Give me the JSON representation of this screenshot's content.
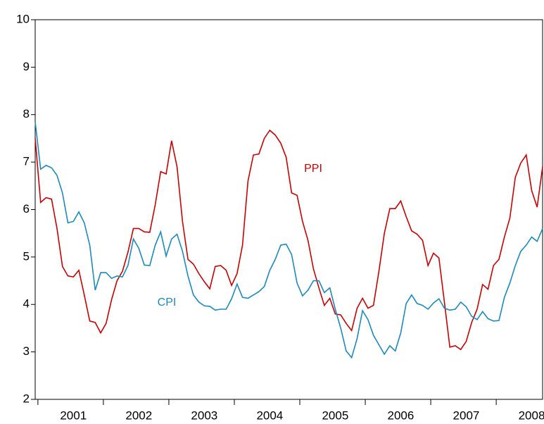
{
  "chart_data": {
    "type": "line",
    "categories": [
      null,
      null,
      null,
      null,
      null,
      null,
      null,
      "2001",
      null,
      null,
      null,
      null,
      null,
      null,
      null,
      null,
      null,
      null,
      null,
      "2002",
      null,
      null,
      null,
      null,
      null,
      null,
      null,
      null,
      null,
      null,
      null,
      "2003",
      null,
      null,
      null,
      null,
      null,
      null,
      null,
      null,
      null,
      null,
      null,
      "2004",
      null,
      null,
      null,
      null,
      null,
      null,
      null,
      null,
      null,
      null,
      null,
      "2005",
      null,
      null,
      null,
      null,
      null,
      null,
      null,
      null,
      null,
      null,
      null,
      "2006",
      null,
      null,
      null,
      null,
      null,
      null,
      null,
      null,
      null,
      null,
      null,
      "2007",
      null,
      null,
      null,
      null,
      null,
      null,
      null,
      null,
      null,
      null,
      null,
      "2008",
      null,
      null
    ],
    "series": [
      {
        "name": "PPI",
        "color": "#cc0000",
        "values": [
          7.5,
          6.15,
          6.25,
          6.22,
          5.6,
          4.8,
          4.6,
          4.58,
          4.72,
          4.2,
          3.65,
          3.62,
          3.4,
          3.6,
          4.1,
          4.5,
          4.7,
          5.1,
          5.6,
          5.6,
          5.53,
          5.52,
          6.1,
          6.8,
          6.75,
          7.45,
          6.9,
          5.75,
          4.95,
          4.85,
          4.65,
          4.48,
          4.33,
          4.8,
          4.82,
          4.72,
          4.4,
          4.65,
          5.25,
          6.6,
          7.15,
          7.17,
          7.5,
          7.67,
          7.57,
          7.4,
          7.1,
          6.35,
          6.3,
          5.75,
          5.35,
          4.75,
          4.35,
          3.98,
          4.13,
          3.8,
          3.78,
          3.6,
          3.45,
          3.92,
          4.13,
          3.92,
          3.98,
          4.7,
          5.5,
          6.02,
          6.02,
          6.18,
          5.85,
          5.55,
          5.48,
          5.35,
          4.82,
          5.08,
          4.98,
          4.05,
          3.1,
          3.13,
          3.05,
          3.22,
          3.62,
          3.9,
          4.42,
          4.32,
          4.82,
          4.95,
          5.42,
          5.82,
          6.68,
          6.98,
          7.15,
          6.4,
          6.05,
          6.9
        ]
      },
      {
        "name": "CPI",
        "color": "#1a8ac0",
        "values": [
          7.85,
          6.85,
          6.93,
          6.88,
          6.72,
          6.35,
          5.72,
          5.75,
          5.95,
          5.72,
          5.25,
          4.3,
          4.67,
          4.67,
          4.55,
          4.6,
          4.58,
          4.82,
          5.38,
          5.18,
          4.83,
          4.82,
          5.25,
          5.53,
          5.02,
          5.38,
          5.48,
          5.12,
          4.6,
          4.2,
          4.05,
          3.97,
          3.96,
          3.88,
          3.9,
          3.9,
          4.12,
          4.43,
          4.15,
          4.13,
          4.2,
          4.27,
          4.38,
          4.72,
          4.95,
          5.25,
          5.27,
          5.05,
          4.45,
          4.18,
          4.3,
          4.5,
          4.5,
          4.25,
          4.35,
          3.9,
          3.5,
          3.02,
          2.88,
          3.28,
          3.87,
          3.68,
          3.35,
          3.15,
          2.95,
          3.13,
          3.02,
          3.4,
          4.02,
          4.2,
          4.02,
          3.98,
          3.9,
          4.03,
          4.12,
          3.92,
          3.88,
          3.9,
          4.05,
          3.95,
          3.75,
          3.68,
          3.85,
          3.7,
          3.65,
          3.66,
          4.15,
          4.45,
          4.82,
          5.12,
          5.25,
          5.42,
          5.33,
          5.6
        ]
      }
    ],
    "ylim": [
      2,
      10
    ],
    "yticks": [
      2,
      3,
      4,
      5,
      6,
      7,
      8,
      9,
      10
    ],
    "grid": false
  }
}
